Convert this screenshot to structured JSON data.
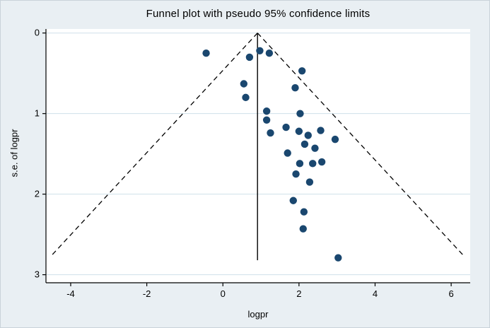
{
  "chart_data": {
    "type": "scatter",
    "title": "Funnel plot with pseudo 95% confidence limits",
    "xlabel": "logpr",
    "ylabel": "s.e. of logpr",
    "xlim": [
      -4.65,
      6.5
    ],
    "ylim": [
      -0.05,
      3.1
    ],
    "y_axis_reversed": true,
    "xticks": [
      -4,
      -2,
      0,
      2,
      4,
      6
    ],
    "yticks": [
      0,
      1,
      2,
      3
    ],
    "grid": "horizontal",
    "funnel": {
      "center": 0.91,
      "z": 1.96,
      "se_end": 2.77,
      "vline_end": 2.82
    },
    "points": [
      [
        -0.44,
        0.25
      ],
      [
        0.7,
        0.3
      ],
      [
        0.97,
        0.22
      ],
      [
        1.22,
        0.25
      ],
      [
        2.08,
        0.47
      ],
      [
        0.55,
        0.63
      ],
      [
        1.9,
        0.68
      ],
      [
        0.6,
        0.8
      ],
      [
        1.15,
        0.97
      ],
      [
        1.15,
        1.08
      ],
      [
        2.03,
        1.0
      ],
      [
        1.25,
        1.24
      ],
      [
        1.66,
        1.17
      ],
      [
        2.0,
        1.22
      ],
      [
        2.24,
        1.27
      ],
      [
        2.57,
        1.21
      ],
      [
        2.95,
        1.32
      ],
      [
        2.15,
        1.38
      ],
      [
        2.42,
        1.43
      ],
      [
        1.7,
        1.49
      ],
      [
        2.02,
        1.62
      ],
      [
        2.36,
        1.62
      ],
      [
        2.6,
        1.6
      ],
      [
        1.92,
        1.75
      ],
      [
        2.28,
        1.85
      ],
      [
        1.85,
        2.08
      ],
      [
        2.13,
        2.22
      ],
      [
        2.11,
        2.43
      ],
      [
        3.03,
        2.79
      ]
    ],
    "colors": {
      "background": "#e9eff3",
      "plot_bg": "#ffffff",
      "grid": "#cfe0ea",
      "dot": "#1a476f",
      "axis": "#000000",
      "funnel_line": "#000000"
    }
  }
}
